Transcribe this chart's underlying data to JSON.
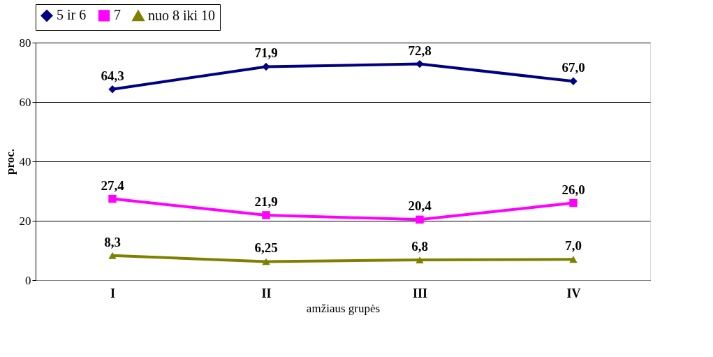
{
  "chart_data": {
    "type": "line",
    "xlabel": "amžiaus grupės",
    "ylabel": "proc.",
    "categories": [
      "I",
      "II",
      "III",
      "IV"
    ],
    "series": [
      {
        "name": "5 ir 6",
        "color": "#000080",
        "marker": "diamond",
        "values": [
          64.3,
          71.9,
          72.8,
          67.0
        ],
        "value_labels": [
          "64,3",
          "71,9",
          "72,8",
          "67,0"
        ]
      },
      {
        "name": "7",
        "color": "#ff00ff",
        "marker": "square",
        "values": [
          27.4,
          21.9,
          20.4,
          26.0
        ],
        "value_labels": [
          "27,4",
          "21,9",
          "20,4",
          "26,0"
        ]
      },
      {
        "name": "nuo 8 iki 10",
        "color": "#808000",
        "marker": "triangle",
        "values": [
          8.3,
          6.25,
          6.8,
          7.0
        ],
        "value_labels": [
          "8,3",
          "6,25",
          "6,8",
          "7,0"
        ]
      }
    ],
    "ylim": [
      0,
      80
    ],
    "yticks": [
      0,
      20,
      40,
      60,
      80
    ],
    "grid": "y",
    "legend": "top",
    "line_style": "solid"
  }
}
